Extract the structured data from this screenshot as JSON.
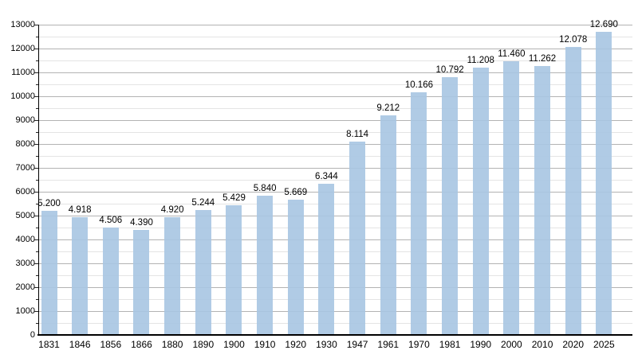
{
  "page": {
    "background_color": "#ffffff"
  },
  "chart_data": {
    "type": "bar",
    "title": "",
    "xlabel": "",
    "ylabel": "",
    "categories": [
      "1831",
      "1846",
      "1856",
      "1866",
      "1880",
      "1890",
      "1900",
      "1910",
      "1920",
      "1930",
      "1947",
      "1961",
      "1970",
      "1981",
      "1990",
      "2000",
      "2010",
      "2020",
      "2025"
    ],
    "values": [
      5200,
      4918,
      4506,
      4390,
      4920,
      5244,
      5429,
      5840,
      5669,
      6344,
      8114,
      9212,
      10166,
      10792,
      11208,
      11460,
      11262,
      12078,
      12690
    ],
    "value_labels": [
      "5.200",
      "4.918",
      "4.506",
      "4.390",
      "4.920",
      "5.244",
      "5.429",
      "5.840",
      "5.669",
      "6.344",
      "8.114",
      "9.212",
      "10.166",
      "10.792",
      "11.208",
      "11.460",
      "11.262",
      "12.078",
      "12.690"
    ],
    "ylim": [
      0,
      13000
    ],
    "y_major_step": 1000,
    "y_minor_step": 500,
    "y_tick_labels": [
      "0",
      "1000",
      "2000",
      "3000",
      "4000",
      "5000",
      "6000",
      "7000",
      "8000",
      "9000",
      "10000",
      "11000",
      "12000",
      "13000"
    ],
    "grid": true,
    "legend": "none",
    "colors": {
      "bar": "#a7c5e2",
      "bar_opacity": 0.9,
      "major_grid": "#b3b3b3",
      "minor_grid": "#e4e4e4",
      "axis": "#000000",
      "text": "#000000"
    }
  }
}
